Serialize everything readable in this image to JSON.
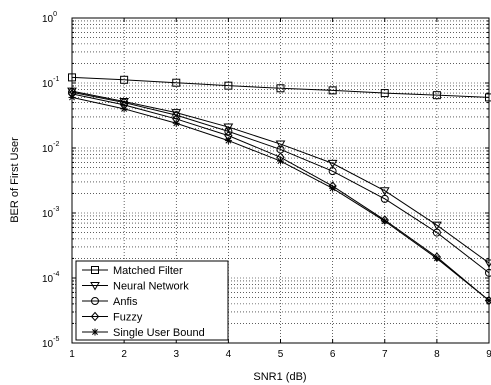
{
  "chart_data": {
    "type": "line",
    "xlabel": "SNR1 (dB)",
    "ylabel": "BER of First User",
    "x": [
      1,
      2,
      3,
      4,
      5,
      6,
      7,
      8,
      9
    ],
    "xlim": [
      1,
      9
    ],
    "ylim": [
      1e-05,
      1
    ],
    "yscale": "log",
    "grid": "dotted",
    "legend_position": "bottom-left",
    "x_ticks": [
      "1",
      "2",
      "3",
      "4",
      "5",
      "6",
      "7",
      "8",
      "9"
    ],
    "y_ticks": [
      {
        "base": "10",
        "exp": "0",
        "value": 1
      },
      {
        "base": "10",
        "exp": "-1",
        "value": 0.1
      },
      {
        "base": "10",
        "exp": "-2",
        "value": 0.01
      },
      {
        "base": "10",
        "exp": "-3",
        "value": 0.001
      },
      {
        "base": "10",
        "exp": "-4",
        "value": 0.0001
      },
      {
        "base": "10",
        "exp": "-5",
        "value": 1e-05
      }
    ],
    "series": [
      {
        "name": "Matched Filter",
        "marker": "square",
        "values": [
          0.122,
          0.112,
          0.101,
          0.091,
          0.083,
          0.077,
          0.07,
          0.065,
          0.06
        ]
      },
      {
        "name": "Neural Network",
        "marker": "triangle-down",
        "values": [
          0.075,
          0.052,
          0.035,
          0.021,
          0.0115,
          0.0058,
          0.0022,
          0.00065,
          0.00017
        ]
      },
      {
        "name": "Anfis",
        "marker": "circle",
        "values": [
          0.072,
          0.05,
          0.032,
          0.018,
          0.0095,
          0.0044,
          0.00165,
          0.0005,
          0.00012
        ]
      },
      {
        "name": "Fuzzy",
        "marker": "diamond",
        "values": [
          0.068,
          0.046,
          0.028,
          0.0155,
          0.0072,
          0.0026,
          0.00078,
          0.00021,
          4.5e-05
        ]
      },
      {
        "name": "Single User Bound",
        "marker": "star",
        "values": [
          0.06,
          0.04,
          0.024,
          0.013,
          0.0063,
          0.0024,
          0.00075,
          0.0002,
          4.5e-05
        ]
      }
    ]
  }
}
